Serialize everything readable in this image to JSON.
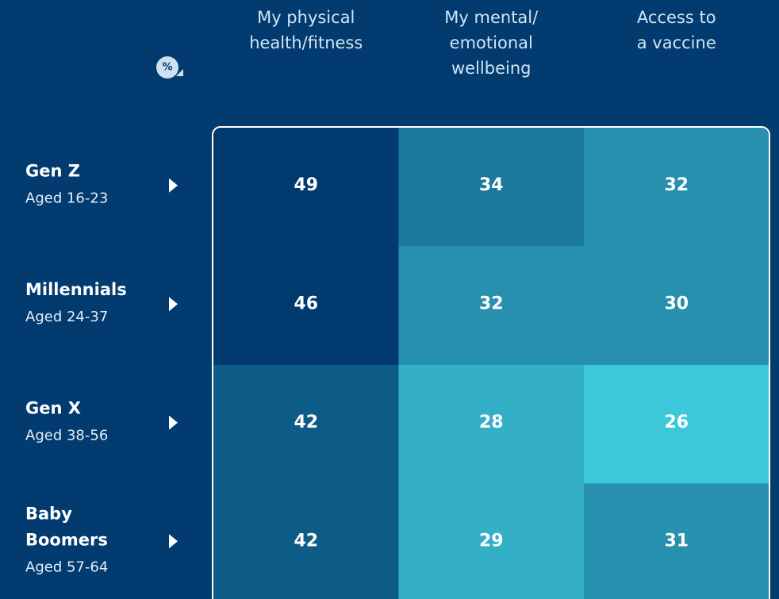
{
  "chart_data": {
    "type": "heatmap",
    "unit_badge": "%",
    "columns": [
      [
        "My physical",
        "health/fitness"
      ],
      [
        "My mental/",
        "emotional",
        "wellbeing"
      ],
      [
        "Access to",
        "a vaccine"
      ]
    ],
    "rows": [
      {
        "name": [
          "Gen Z"
        ],
        "subtitle": "Aged 16-23"
      },
      {
        "name": [
          "Millennials"
        ],
        "subtitle": "Aged 24-37"
      },
      {
        "name": [
          "Gen X"
        ],
        "subtitle": "Aged 38-56"
      },
      {
        "name": [
          "Baby",
          "Boomers"
        ],
        "subtitle": "Aged 57-64"
      }
    ],
    "values": [
      [
        49,
        34,
        32
      ],
      [
        46,
        32,
        30
      ],
      [
        42,
        28,
        26
      ],
      [
        42,
        29,
        31
      ]
    ],
    "colors": [
      [
        "#013a6e",
        "#1b789f",
        "#2690ae"
      ],
      [
        "#013a6e",
        "#2690ae",
        "#2690ae"
      ],
      [
        "#0d5b87",
        "#33afc6",
        "#3bc9da"
      ],
      [
        "#0d5b87",
        "#33afc6",
        "#2690ae"
      ]
    ]
  }
}
